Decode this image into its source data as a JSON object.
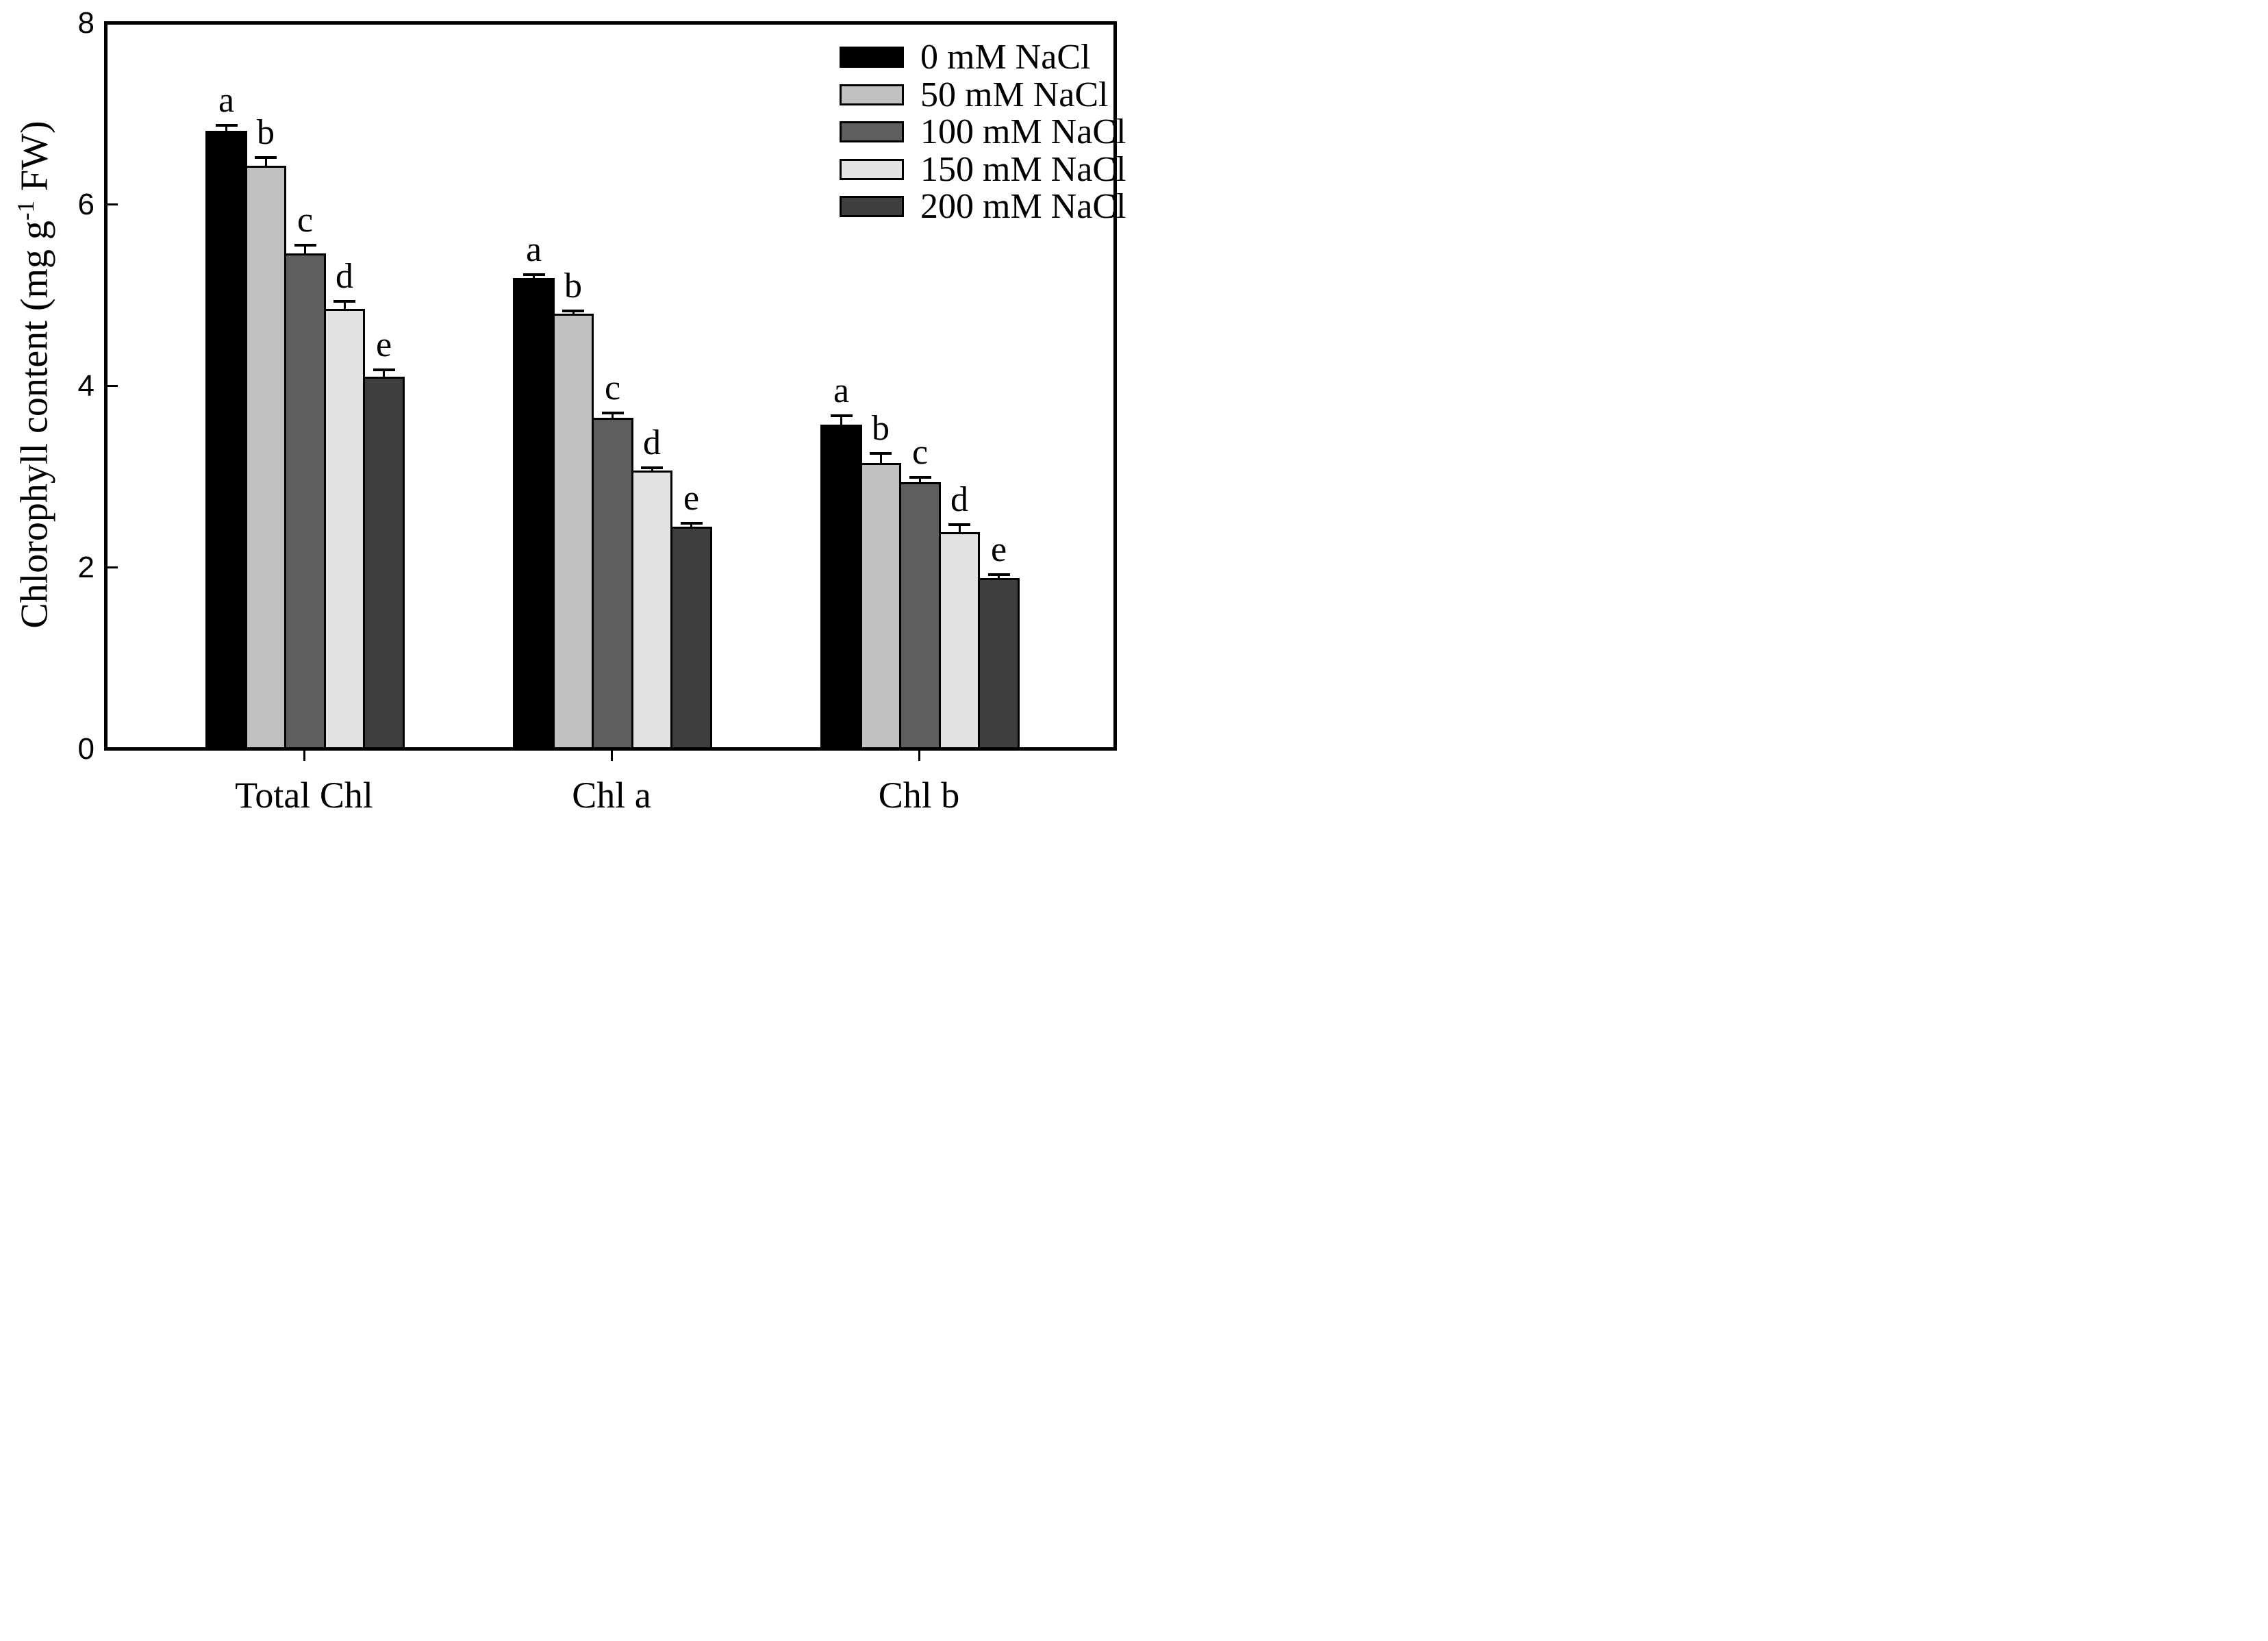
{
  "figure": {
    "description": "Bar chart of chlorophyll content under increasing NaCl salinity",
    "background": "#ffffff",
    "axis_color": "#000000"
  },
  "y_axis": {
    "label_parts": [
      "Chlorophyll content (mg g",
      "-1",
      " FW)"
    ],
    "tick_labels": [
      "0",
      "2",
      "4",
      "6",
      "8"
    ]
  },
  "chart_data": {
    "type": "bar",
    "title": "",
    "xlabel": "",
    "ylabel": "Chlorophyll content (mg g-1 FW)",
    "categories": [
      "Total Chl",
      "Chl a",
      "Chl b"
    ],
    "series": [
      {
        "name": "0 mM NaCl",
        "color": "#000000",
        "values": [
          6.81,
          5.19,
          3.57
        ],
        "errors": [
          0.06,
          0.04,
          0.1
        ],
        "letters": [
          "a",
          "a",
          "a"
        ]
      },
      {
        "name": "50 mM NaCl",
        "color": "#c1c1c1",
        "values": [
          6.43,
          4.8,
          3.15
        ],
        "errors": [
          0.09,
          0.03,
          0.11
        ],
        "letters": [
          "b",
          "b",
          "b"
        ]
      },
      {
        "name": "100 mM NaCl",
        "color": "#5e5e5e",
        "values": [
          5.46,
          3.65,
          2.94
        ],
        "errors": [
          0.09,
          0.05,
          0.05
        ],
        "letters": [
          "c",
          "c",
          "c"
        ]
      },
      {
        "name": "150 mM NaCl",
        "color": "#e2e2e2",
        "values": [
          4.85,
          3.07,
          2.39
        ],
        "errors": [
          0.08,
          0.03,
          0.08
        ],
        "letters": [
          "d",
          "d",
          "d"
        ]
      },
      {
        "name": "200 mM NaCl",
        "color": "#3e3e3e",
        "values": [
          4.1,
          2.45,
          1.88
        ],
        "errors": [
          0.08,
          0.04,
          0.04
        ],
        "letters": [
          "e",
          "e",
          "e"
        ]
      }
    ],
    "yticks": [
      0,
      2,
      4,
      6,
      8
    ],
    "ylim": [
      0,
      8
    ],
    "bar_edge_color": "#000000",
    "error_bar_direction": "upper-only",
    "grid": false,
    "legend_position": "top-right"
  }
}
